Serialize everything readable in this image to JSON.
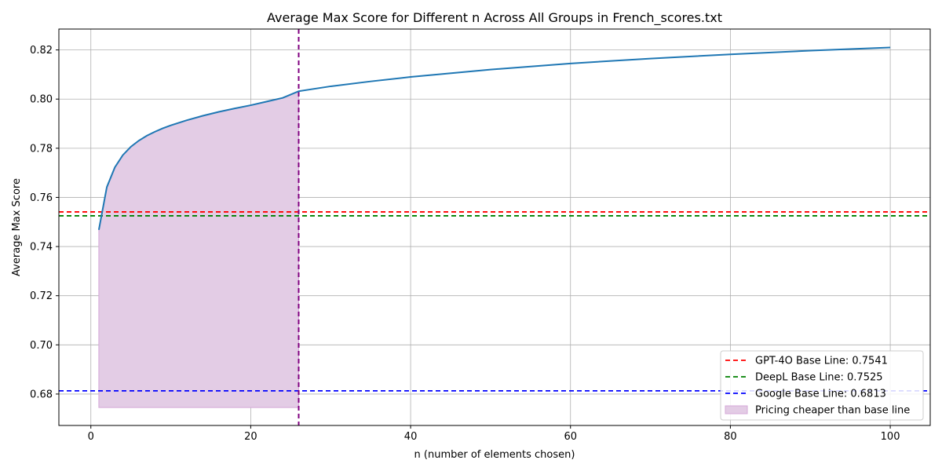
{
  "chart_data": {
    "type": "line",
    "title": "Average Max Score for Different n Across All Groups in French_scores.txt",
    "xlabel": "n (number of elements chosen)",
    "ylabel": "Average Max Score",
    "xlim": [
      -4,
      105
    ],
    "ylim": [
      0.6672,
      0.8285
    ],
    "xticks": [
      0,
      20,
      40,
      60,
      80,
      100
    ],
    "xtick_labels": [
      "0",
      "20",
      "40",
      "60",
      "80",
      "100"
    ],
    "yticks": [
      0.68,
      0.7,
      0.72,
      0.74,
      0.76,
      0.78,
      0.8,
      0.82
    ],
    "ytick_labels": [
      "0.68",
      "0.70",
      "0.72",
      "0.74",
      "0.76",
      "0.78",
      "0.80",
      "0.82"
    ],
    "grid": true,
    "curve": {
      "color": "#1f77b4",
      "x": [
        1,
        2,
        3,
        4,
        5,
        6,
        7,
        8,
        9,
        10,
        12,
        14,
        16,
        18,
        20,
        22,
        24,
        26,
        30,
        35,
        40,
        50,
        60,
        70,
        80,
        90,
        100
      ],
      "y": [
        0.7468,
        0.7642,
        0.7722,
        0.7772,
        0.7806,
        0.7831,
        0.7851,
        0.7867,
        0.7881,
        0.7893,
        0.7914,
        0.7932,
        0.7948,
        0.7962,
        0.7975,
        0.799,
        0.8005,
        0.8032,
        0.8052,
        0.8072,
        0.809,
        0.812,
        0.8145,
        0.8165,
        0.8182,
        0.8197,
        0.821
      ]
    },
    "baselines": [
      {
        "name": "GPT-4O Base Line: 0.7541",
        "value": 0.7541,
        "color": "#ff0000"
      },
      {
        "name": "DeepL Base Line: 0.7525",
        "value": 0.7525,
        "color": "#008000"
      },
      {
        "name": "Google Base Line: 0.6813",
        "value": 0.6813,
        "color": "#0000ff"
      }
    ],
    "vertical_line": {
      "x": 26,
      "color": "#800080"
    },
    "shaded_region": {
      "name": "Pricing cheaper than base line",
      "x_start": 1,
      "x_end": 26,
      "y_floor": 0.6745,
      "color": "#e3cce5",
      "edge_color": "#d4a8d8"
    },
    "legend_position": "lower-right"
  }
}
